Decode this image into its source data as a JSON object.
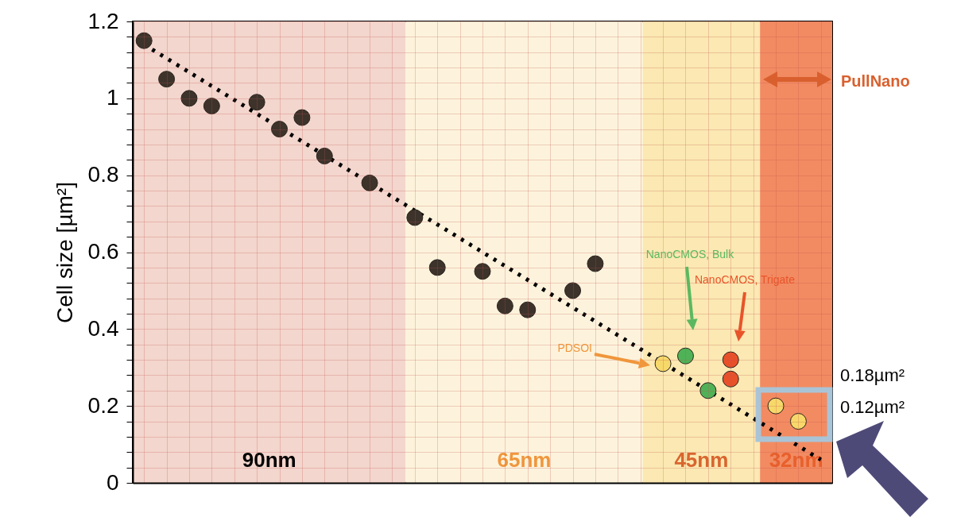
{
  "chart_data": {
    "type": "scatter",
    "ylabel": "Cell size [µm²]",
    "categories": [
      null,
      null,
      null,
      null,
      null,
      null,
      null,
      null,
      null,
      null,
      null,
      null,
      null,
      null,
      null,
      null,
      null,
      null,
      null,
      null,
      null,
      null,
      null,
      null,
      null,
      null,
      null,
      null,
      null,
      null,
      null
    ],
    "ylim": [
      0,
      1.2
    ],
    "yticks": [
      0,
      {
        "value": 0.04,
        "label": null
      },
      {
        "value": 0.08,
        "label": null
      },
      {
        "value": 0.12,
        "label": null
      },
      {
        "value": 0.16,
        "label": null
      },
      0.2,
      {
        "value": 0.24,
        "label": null
      },
      {
        "value": 0.28,
        "label": null
      },
      {
        "value": 0.32,
        "label": null
      },
      {
        "value": 0.36,
        "label": null
      },
      0.4,
      {
        "value": 0.44,
        "label": null
      },
      {
        "value": 0.48,
        "label": null
      },
      {
        "value": 0.52,
        "label": null
      },
      {
        "value": 0.56,
        "label": null
      },
      0.6,
      {
        "value": 0.64,
        "label": null
      },
      {
        "value": 0.68,
        "label": null
      },
      {
        "value": 0.72,
        "label": null
      },
      {
        "value": 0.76,
        "label": null
      },
      0.8,
      {
        "value": 0.84,
        "label": null
      },
      {
        "value": 0.88,
        "label": null
      },
      {
        "value": 0.92,
        "label": null
      },
      {
        "value": 0.96,
        "label": null
      },
      1,
      {
        "value": 1.04,
        "label": null
      },
      {
        "value": 1.08,
        "label": null
      },
      {
        "value": 1.12,
        "label": null
      },
      {
        "value": 1.16,
        "label": null
      },
      1.2
    ],
    "grid": true,
    "tick_labels": "y",
    "series": [
      {
        "type": "line",
        "color": "#000000",
        "line_style": "dotted",
        "marker": "none",
        "values": [
          1.14,
          null,
          null,
          null,
          null,
          null,
          null,
          null,
          null,
          null,
          null,
          null,
          null,
          null,
          null,
          null,
          null,
          null,
          null,
          null,
          null,
          null,
          null,
          null,
          null,
          null,
          null,
          null,
          null,
          null,
          0.06
        ]
      },
      {
        "type": "scatter",
        "color": "#3d332b",
        "marker": "circle",
        "values": [
          1.15,
          1.05,
          1.0,
          0.98,
          null,
          0.99,
          0.92,
          0.95,
          0.85,
          null,
          0.78,
          null,
          0.69,
          0.56,
          null,
          0.55,
          0.46,
          0.45,
          null,
          0.5,
          0.57,
          null,
          null,
          null,
          null,
          null,
          null,
          null,
          null,
          null,
          null
        ]
      },
      {
        "type": "scatter",
        "color": "#f7d86a",
        "marker": "circle",
        "values": [
          null,
          null,
          null,
          null,
          null,
          null,
          null,
          null,
          null,
          null,
          null,
          null,
          null,
          null,
          null,
          null,
          null,
          null,
          null,
          null,
          null,
          null,
          null,
          0.31,
          null,
          null,
          null,
          null,
          0.2,
          0.16,
          null
        ]
      },
      {
        "type": "scatter",
        "color": "#4fb257",
        "marker": "circle",
        "values": [
          null,
          null,
          null,
          null,
          null,
          null,
          null,
          null,
          null,
          null,
          null,
          null,
          null,
          null,
          null,
          null,
          null,
          null,
          null,
          null,
          null,
          null,
          null,
          null,
          0.33,
          0.24,
          null,
          null,
          null,
          null,
          null
        ]
      },
      {
        "type": "scatter",
        "color": "#e8502a",
        "marker": "circle",
        "values": [
          null,
          null,
          null,
          null,
          null,
          null,
          null,
          null,
          null,
          null,
          null,
          null,
          null,
          null,
          null,
          null,
          null,
          null,
          null,
          null,
          null,
          null,
          null,
          null,
          null,
          null,
          0.32,
          null,
          null,
          null,
          null
        ]
      },
      {
        "type": "scatter",
        "color": "#e8502a",
        "marker": "circle",
        "values": [
          null,
          null,
          null,
          null,
          null,
          null,
          null,
          null,
          null,
          null,
          null,
          null,
          null,
          null,
          null,
          null,
          null,
          null,
          null,
          null,
          null,
          null,
          null,
          null,
          null,
          null,
          0.27,
          null,
          null,
          null,
          null
        ]
      }
    ],
    "annotations": [
      "PDSOI",
      "NanoCMOS, Bulk",
      "NanoCMOS, Trigate",
      "0.18µm²",
      "0.12µm²",
      "PullNano",
      "90nm",
      "65nm",
      "45nm",
      "32nm"
    ]
  }
}
